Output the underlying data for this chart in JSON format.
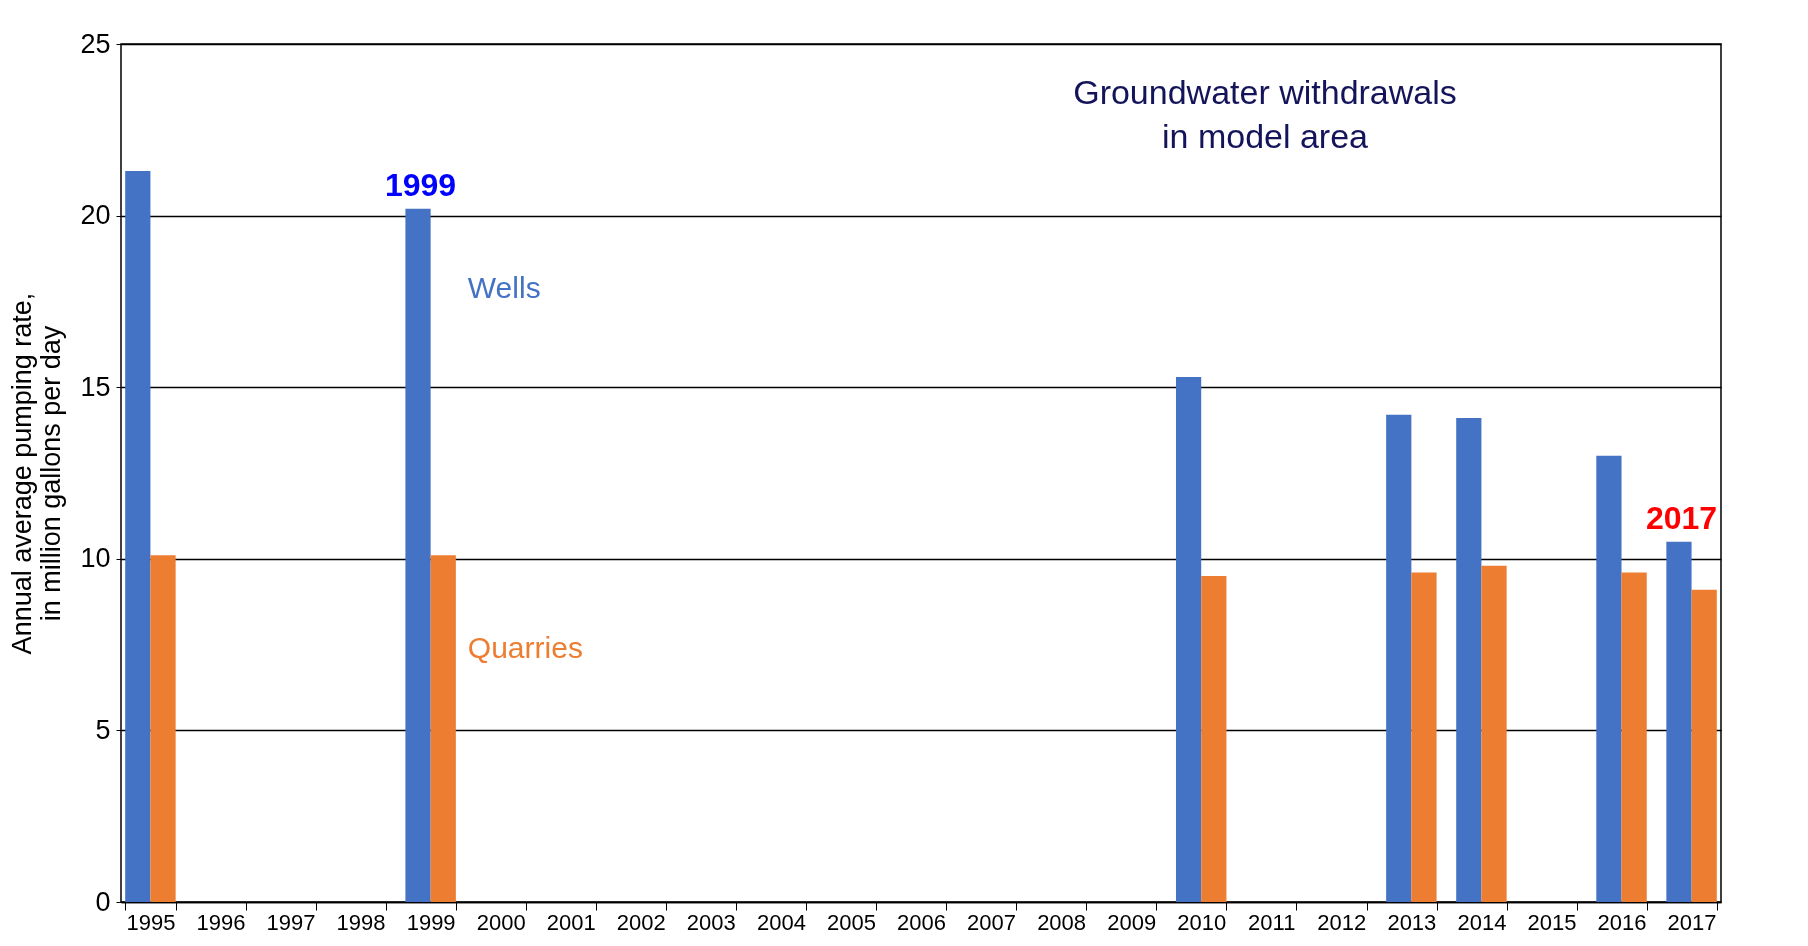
{
  "chart_data": {
    "type": "bar",
    "title": "Groundwater withdrawals\nin model area",
    "ylabel": "Annual average pumping rate,\nin  million gallons per day",
    "categories": [
      "1995",
      "1996",
      "1997",
      "1998",
      "1999",
      "2000",
      "2001",
      "2002",
      "2003",
      "2004",
      "2005",
      "2006",
      "2007",
      "2008",
      "2009",
      "2010",
      "2011",
      "2012",
      "2013",
      "2014",
      "2015",
      "2016",
      "2017"
    ],
    "series": [
      {
        "name": "Wells",
        "color": "#4472c4",
        "values": [
          21.3,
          null,
          null,
          null,
          20.2,
          null,
          null,
          null,
          null,
          null,
          null,
          null,
          null,
          null,
          null,
          15.3,
          null,
          null,
          14.2,
          14.1,
          null,
          13.0,
          10.5
        ]
      },
      {
        "name": "Quarries",
        "color": "#ed7d31",
        "values": [
          10.1,
          null,
          null,
          null,
          10.1,
          null,
          null,
          null,
          null,
          null,
          null,
          null,
          null,
          null,
          null,
          9.5,
          null,
          null,
          9.6,
          9.8,
          null,
          9.6,
          9.1
        ]
      }
    ],
    "annotations": [
      {
        "text": "1999",
        "x": "1999",
        "y": 20.2
      },
      {
        "text": "2017",
        "x": "2017",
        "y": 10.5
      }
    ],
    "ylim": [
      0,
      25
    ],
    "yticks": [
      0,
      5,
      10,
      15,
      20,
      25
    ],
    "grid": "y",
    "legend": false
  }
}
